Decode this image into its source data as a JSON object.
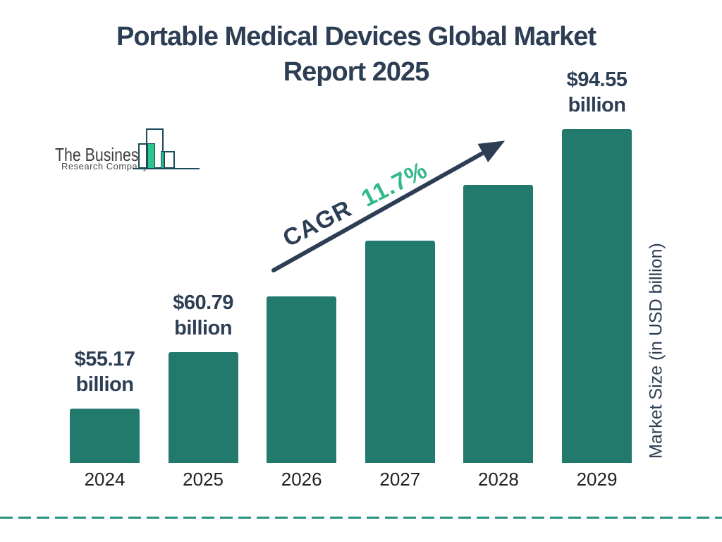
{
  "title": {
    "line1": "Portable Medical Devices Global Market",
    "line2": "Report 2025"
  },
  "logo": {
    "name": "The Business",
    "subname": "Research Company"
  },
  "cagr": {
    "label": "CAGR",
    "value": "11.7%"
  },
  "y_axis_label": "Market Size (in USD billion)",
  "colors": {
    "navy": "#2D3E54",
    "bar_teal": "#217A6C",
    "accent_green": "#32B98A",
    "logo_green": "#2CC48F",
    "logo_outline": "#1C4B5C",
    "dashed_rule_teal": "#2A9184",
    "background": "#FFFFFF"
  },
  "chart_data": {
    "type": "bar",
    "categories": [
      "2024",
      "2025",
      "2026",
      "2027",
      "2028",
      "2029"
    ],
    "values": [
      55.17,
      60.79,
      67.9,
      75.85,
      84.72,
      94.55
    ],
    "values_estimated_for": [
      "2026",
      "2027",
      "2028"
    ],
    "unit": "USD billion",
    "series_name": "Market Size",
    "title": "Portable Medical Devices Global Market Report 2025",
    "xlabel": "",
    "ylabel": "Market Size (in USD billion)",
    "grid": false,
    "legend": false,
    "cagr_annotation": "CAGR 11.7%",
    "annotations": [
      {
        "category": "2024",
        "line1": "$55.17",
        "line2": "billion"
      },
      {
        "category": "2025",
        "line1": "$60.79",
        "line2": "billion"
      },
      {
        "category": "2029",
        "line1": "$94.55",
        "line2": "billion"
      }
    ]
  }
}
